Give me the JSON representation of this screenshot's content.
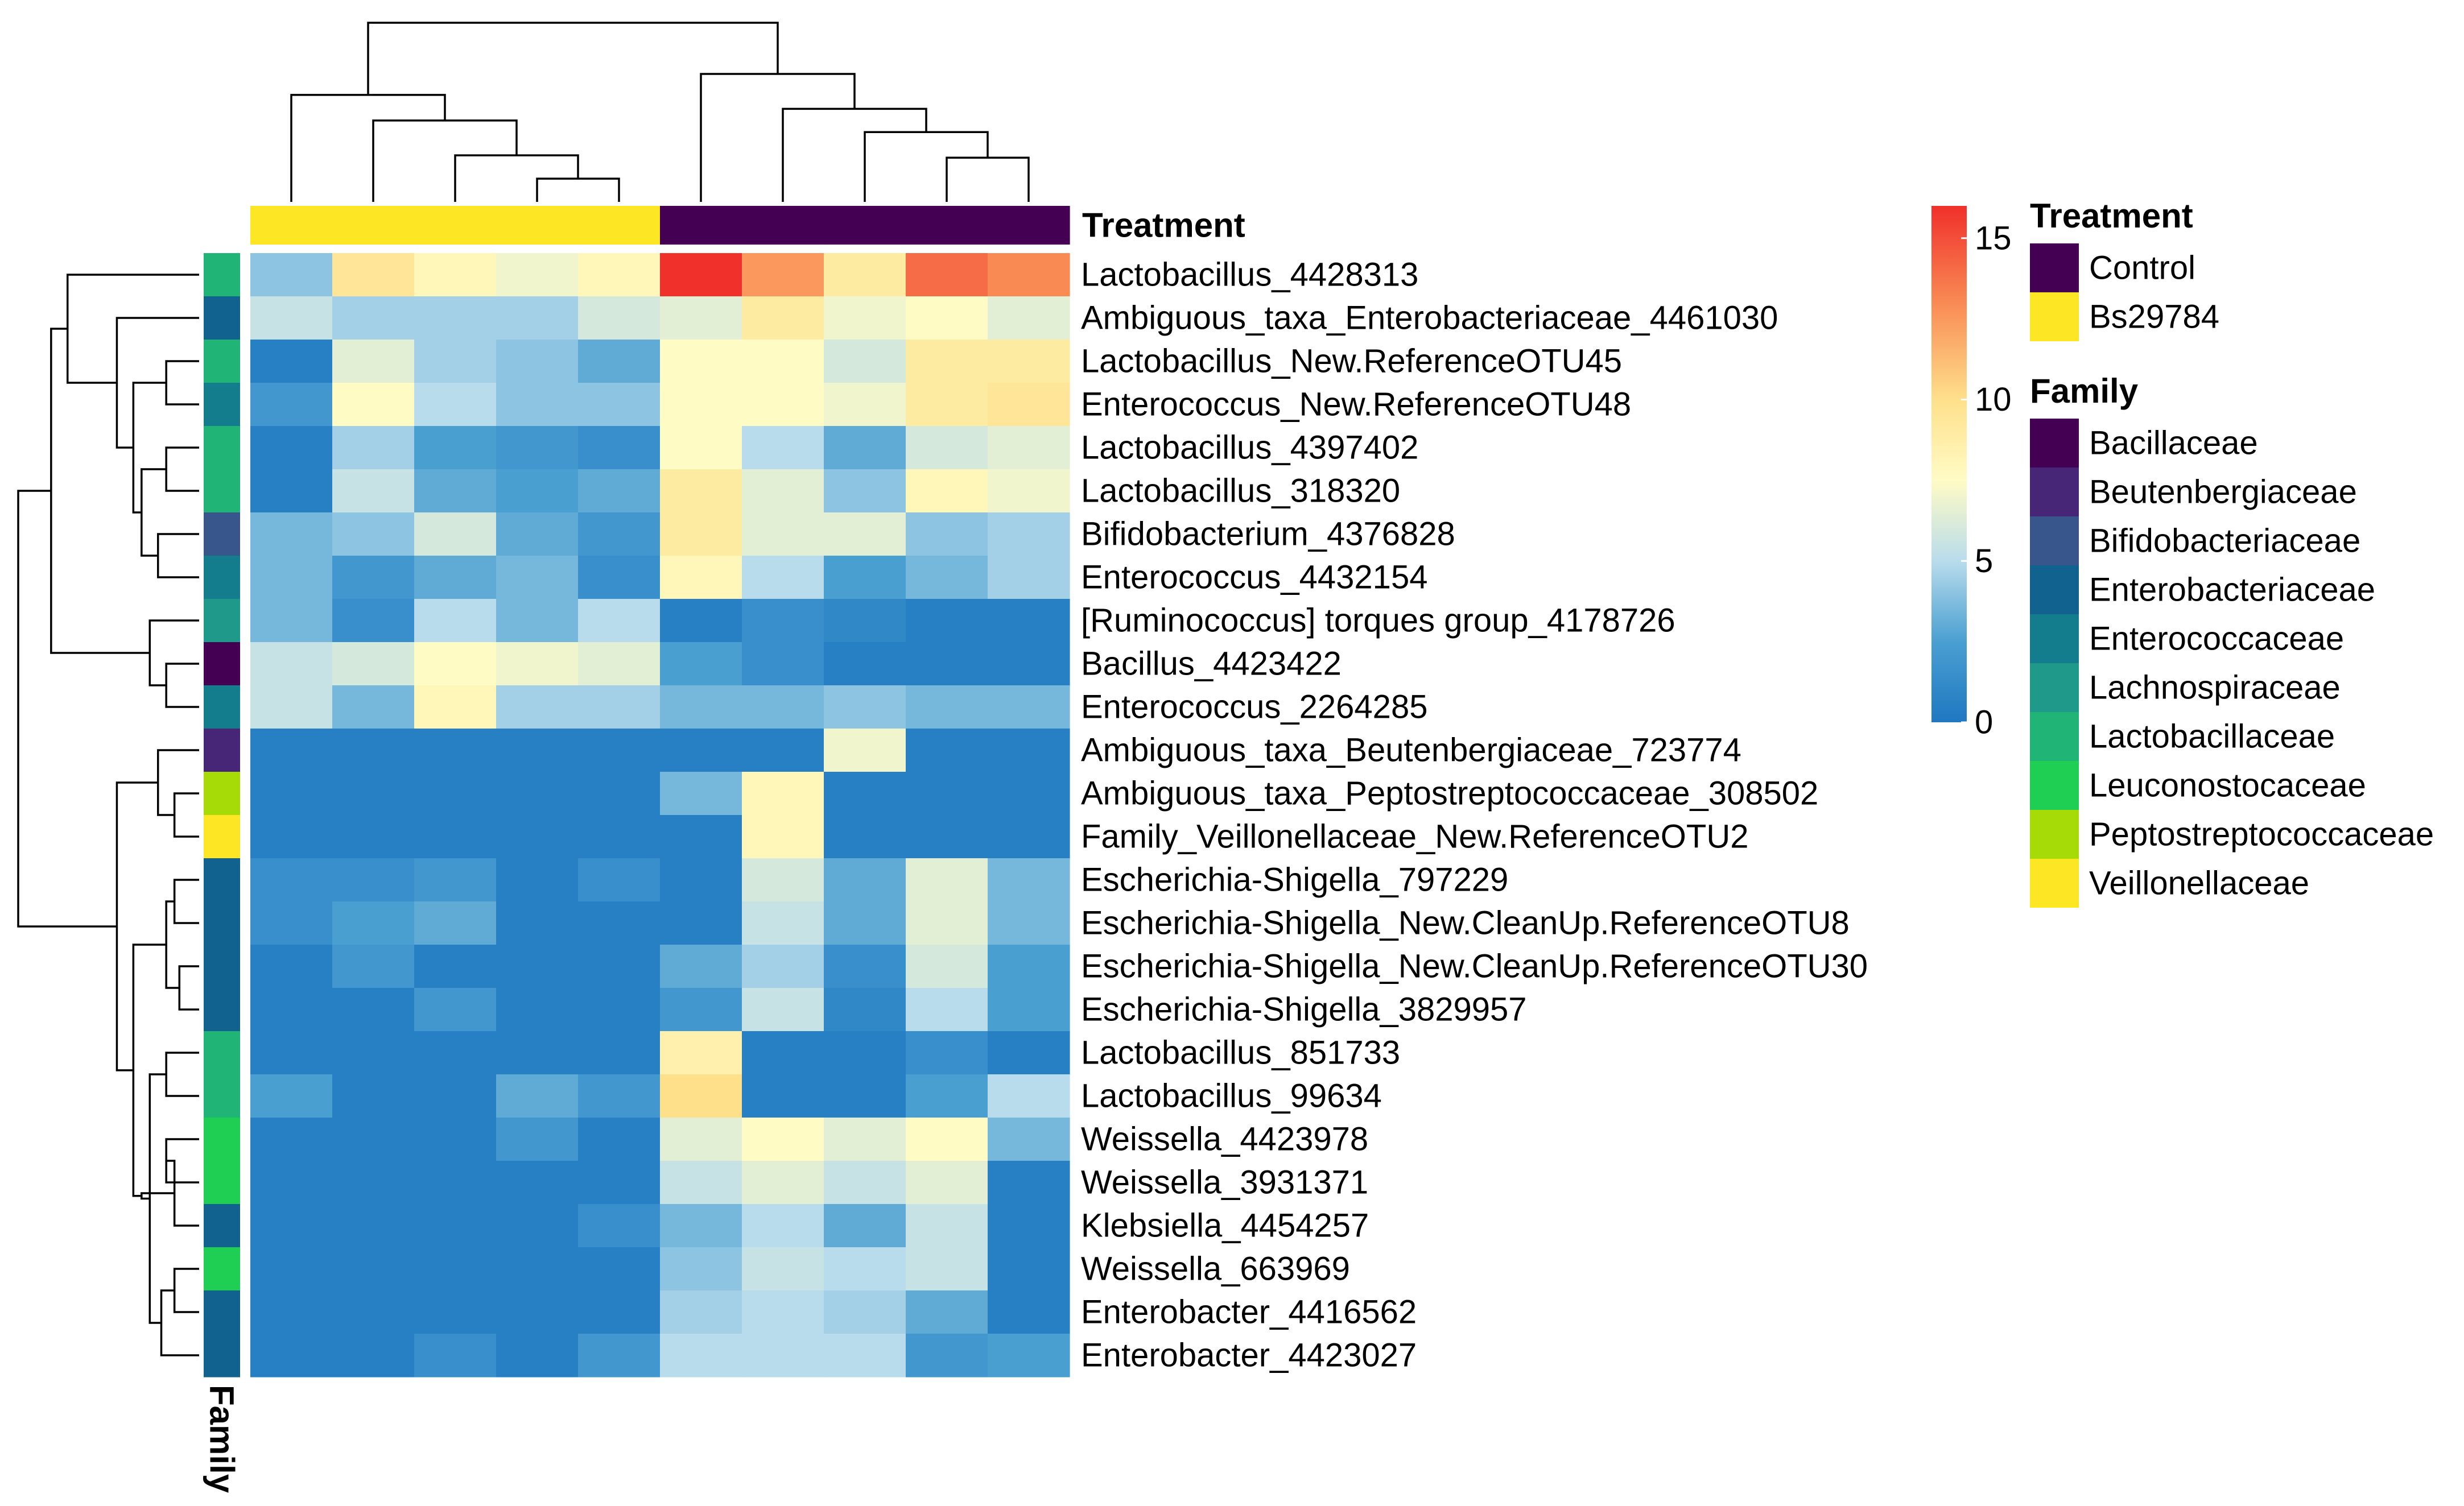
{
  "chart_data": {
    "type": "heatmap",
    "value_range": [
      0,
      16
    ],
    "color_scale": {
      "stops": [
        {
          "value": 0,
          "color": "#1f78c1"
        },
        {
          "value": 2.5,
          "color": "#4a9fd1"
        },
        {
          "value": 5,
          "color": "#b9dcec"
        },
        {
          "value": 7.5,
          "color": "#fffbc5"
        },
        {
          "value": 10,
          "color": "#fee08b"
        },
        {
          "value": 13,
          "color": "#f98a54"
        },
        {
          "value": 16,
          "color": "#f0302b"
        }
      ],
      "ticks": [
        0,
        5,
        10,
        15
      ],
      "tick_labels": [
        "0",
        "5",
        "10",
        "15"
      ]
    },
    "columns": [
      {
        "id": "s1",
        "treatment": "Bs29784"
      },
      {
        "id": "s2",
        "treatment": "Bs29784"
      },
      {
        "id": "s3",
        "treatment": "Bs29784"
      },
      {
        "id": "s4",
        "treatment": "Bs29784"
      },
      {
        "id": "s5",
        "treatment": "Bs29784"
      },
      {
        "id": "s6",
        "treatment": "Control"
      },
      {
        "id": "s7",
        "treatment": "Control"
      },
      {
        "id": "s8",
        "treatment": "Control"
      },
      {
        "id": "s9",
        "treatment": "Control"
      },
      {
        "id": "s10",
        "treatment": "Control"
      }
    ],
    "rows": [
      {
        "label": "Lactobacillus_4428313",
        "family": "Lactobacillaceae",
        "values": [
          4,
          9.5,
          8,
          7,
          8,
          16,
          12.5,
          9,
          14,
          13
        ]
      },
      {
        "label": "Ambiguous_taxa_Enterobacteriaceae_4461030",
        "family": "Enterobacteriaceae",
        "values": [
          5.5,
          4.5,
          4.5,
          4.5,
          6,
          6.5,
          9,
          7,
          7.5,
          6.5
        ]
      },
      {
        "label": "Lactobacillus_New.ReferenceOTU45",
        "family": "Lactobacillaceae",
        "values": [
          0.5,
          6.5,
          4.5,
          4,
          3,
          7.5,
          7.5,
          6,
          9,
          9
        ]
      },
      {
        "label": "Enterococcus_New.ReferenceOTU48",
        "family": "Enterococcaceae",
        "values": [
          2,
          7.5,
          5,
          4,
          4,
          7.5,
          7.5,
          7,
          9,
          9.5
        ]
      },
      {
        "label": "Lactobacillus_4397402",
        "family": "Lactobacillaceae",
        "values": [
          0.5,
          4.5,
          2.5,
          2,
          1.5,
          7.5,
          5,
          3,
          6,
          6.5
        ]
      },
      {
        "label": "Lactobacillus_318320",
        "family": "Lactobacillaceae",
        "values": [
          0.5,
          5.5,
          3,
          2.5,
          3,
          9,
          6.5,
          4,
          8,
          7
        ]
      },
      {
        "label": "Bifidobacterium_4376828",
        "family": "Bifidobacteriaceae",
        "values": [
          3.5,
          4,
          6,
          3,
          2,
          9,
          6.5,
          6.5,
          4,
          4.5
        ]
      },
      {
        "label": "Enterococcus_4432154",
        "family": "Enterococcaceae",
        "values": [
          3.5,
          2,
          3,
          3.5,
          1.5,
          8,
          5,
          2.5,
          3.5,
          4.5
        ]
      },
      {
        "label": "[Ruminococcus] torques group_4178726",
        "family": "Lachnospiraceae",
        "values": [
          3.5,
          1.5,
          5,
          3.5,
          5,
          0.5,
          1.5,
          1,
          0.5,
          0.5
        ]
      },
      {
        "label": "Bacillus_4423422",
        "family": "Bacillaceae",
        "values": [
          5.5,
          6,
          7.5,
          7,
          6.5,
          2.5,
          1.5,
          0.5,
          0.5,
          0.5
        ]
      },
      {
        "label": "Enterococcus_2264285",
        "family": "Enterococcaceae",
        "values": [
          5.5,
          3.5,
          8,
          4.5,
          4.5,
          3.5,
          3.5,
          4,
          3.5,
          3.5
        ]
      },
      {
        "label": "Ambiguous_taxa_Beutenbergiaceae_723774",
        "family": "Beutenbergiaceae",
        "values": [
          0.5,
          0.5,
          0.5,
          0.5,
          0.5,
          0.5,
          0.5,
          7,
          0.5,
          0.5
        ]
      },
      {
        "label": "Ambiguous_taxa_Peptostreptococcaceae_308502",
        "family": "Peptostreptococcaceae",
        "values": [
          0.5,
          0.5,
          0.5,
          0.5,
          0.5,
          3.5,
          8,
          0.5,
          0.5,
          0.5
        ]
      },
      {
        "label": "Family_Veillonellaceae_New.ReferenceOTU2",
        "family": "Veillonellaceae",
        "values": [
          0.5,
          0.5,
          0.5,
          0.5,
          0.5,
          0.5,
          8,
          0.5,
          0.5,
          0.5
        ]
      },
      {
        "label": "Escherichia-Shigella_797229",
        "family": "Enterobacteriaceae",
        "values": [
          1.5,
          1.5,
          2,
          0.5,
          1.5,
          0.5,
          6,
          3,
          6.5,
          3.5
        ]
      },
      {
        "label": "Escherichia-Shigella_New.CleanUp.ReferenceOTU8",
        "family": "Enterobacteriaceae",
        "values": [
          1.5,
          2.5,
          3,
          0.5,
          0.5,
          0.5,
          5.5,
          3,
          6.5,
          3.5
        ]
      },
      {
        "label": "Escherichia-Shigella_New.CleanUp.ReferenceOTU30",
        "family": "Enterobacteriaceae",
        "values": [
          0.5,
          2,
          0.5,
          0.5,
          0.5,
          3,
          4.5,
          1.5,
          6,
          2.5
        ]
      },
      {
        "label": "Escherichia-Shigella_3829957",
        "family": "Enterobacteriaceae",
        "values": [
          0.5,
          0.5,
          2,
          0.5,
          0.5,
          2,
          5.5,
          1,
          5,
          2.5
        ]
      },
      {
        "label": "Lactobacillus_851733",
        "family": "Lactobacillaceae",
        "values": [
          0.5,
          0.5,
          0.5,
          0.5,
          0.5,
          8.5,
          0.5,
          0.5,
          1.5,
          0.5
        ]
      },
      {
        "label": "Lactobacillus_99634",
        "family": "Lactobacillaceae",
        "values": [
          2.5,
          0.5,
          0.5,
          3,
          2,
          10,
          0.5,
          0.5,
          2.5,
          5
        ]
      },
      {
        "label": "Weissella_4423978",
        "family": "Leuconostocaceae",
        "values": [
          0.5,
          0.5,
          0.5,
          2,
          0.5,
          6.5,
          7.5,
          6.5,
          7.5,
          3.5
        ]
      },
      {
        "label": "Weissella_3931371",
        "family": "Leuconostocaceae",
        "values": [
          0.5,
          0.5,
          0.5,
          0.5,
          0.5,
          5.5,
          6.5,
          5.5,
          6.5,
          0.5
        ]
      },
      {
        "label": "Klebsiella_4454257",
        "family": "Enterobacteriaceae",
        "values": [
          0.5,
          0.5,
          0.5,
          0.5,
          1.5,
          3.5,
          5,
          3,
          5.5,
          0.5
        ]
      },
      {
        "label": "Weissella_663969",
        "family": "Leuconostocaceae",
        "values": [
          0.5,
          0.5,
          0.5,
          0.5,
          0.5,
          4,
          5.5,
          5,
          5.5,
          0.5
        ]
      },
      {
        "label": "Enterobacter_4416562",
        "family": "Enterobacteriaceae",
        "values": [
          0.5,
          0.5,
          0.5,
          0.5,
          0.5,
          4.5,
          5,
          4.5,
          3,
          0.5
        ]
      },
      {
        "label": "Enterobacter_4423027",
        "family": "Enterobacteriaceae",
        "values": [
          0.5,
          0.5,
          1.5,
          0.5,
          2,
          5,
          5,
          5,
          2,
          2.5
        ]
      }
    ],
    "column_annotation": {
      "title": "Treatment",
      "levels": [
        {
          "name": "Control",
          "color": "#440154"
        },
        {
          "name": "Bs29784",
          "color": "#fde725"
        }
      ]
    },
    "row_annotation": {
      "title": "Family",
      "levels": [
        {
          "name": "Bacillaceae",
          "color": "#440154"
        },
        {
          "name": "Beutenbergiaceae",
          "color": "#482677"
        },
        {
          "name": "Bifidobacteriaceae",
          "color": "#39568c"
        },
        {
          "name": "Enterobacteriaceae",
          "color": "#11628f"
        },
        {
          "name": "Enterococcaceae",
          "color": "#137d8d"
        },
        {
          "name": "Lachnospiraceae",
          "color": "#1f9a8a"
        },
        {
          "name": "Lactobacillaceae",
          "color": "#20b576"
        },
        {
          "name": "Leuconostocaceae",
          "color": "#1fcf54"
        },
        {
          "name": "Peptostreptococcaceae",
          "color": "#a6db07"
        },
        {
          "name": "Veillonellaceae",
          "color": "#fde725"
        }
      ]
    },
    "column_dendrogram": {
      "merges": [
        [
          4,
          5,
          1
        ],
        [
          3,
          -1,
          2
        ],
        [
          2,
          -2,
          3.5
        ],
        [
          1,
          -3,
          4.6
        ],
        [
          9,
          10,
          1.9
        ],
        [
          8,
          -5,
          3
        ],
        [
          7,
          -6,
          4
        ],
        [
          6,
          -7,
          5.5
        ],
        [
          -4,
          -8,
          7.7
        ]
      ]
    },
    "row_dendrogram": {
      "merges": [
        [
          3,
          4,
          2
        ],
        [
          5,
          6,
          2
        ],
        [
          7,
          8,
          2.5
        ],
        [
          -2,
          -3,
          3.5
        ],
        [
          -1,
          -4,
          4
        ],
        [
          2,
          -5,
          5
        ],
        [
          10,
          11,
          2
        ],
        [
          9,
          -7,
          3
        ],
        [
          1,
          -6,
          8
        ],
        [
          -8,
          -9,
          9
        ],
        [
          13,
          14,
          1.5
        ],
        [
          12,
          -11,
          2.5
        ],
        [
          15,
          16,
          1.5
        ],
        [
          17,
          18,
          1.2
        ],
        [
          -13,
          -14,
          2
        ],
        [
          19,
          20,
          2
        ],
        [
          21,
          22,
          2
        ],
        [
          23,
          -17,
          1.5
        ],
        [
          24,
          25,
          1.5
        ],
        [
          26,
          -19,
          2.3
        ],
        [
          -16,
          -20,
          3
        ],
        [
          -18,
          -21,
          3.5
        ],
        [
          -15,
          -22,
          4
        ],
        [
          -12,
          -23,
          5
        ],
        [
          -10,
          -24,
          11
        ]
      ]
    },
    "labels": {
      "column_annotation_title": "Treatment",
      "row_annotation_title": "Family"
    }
  }
}
